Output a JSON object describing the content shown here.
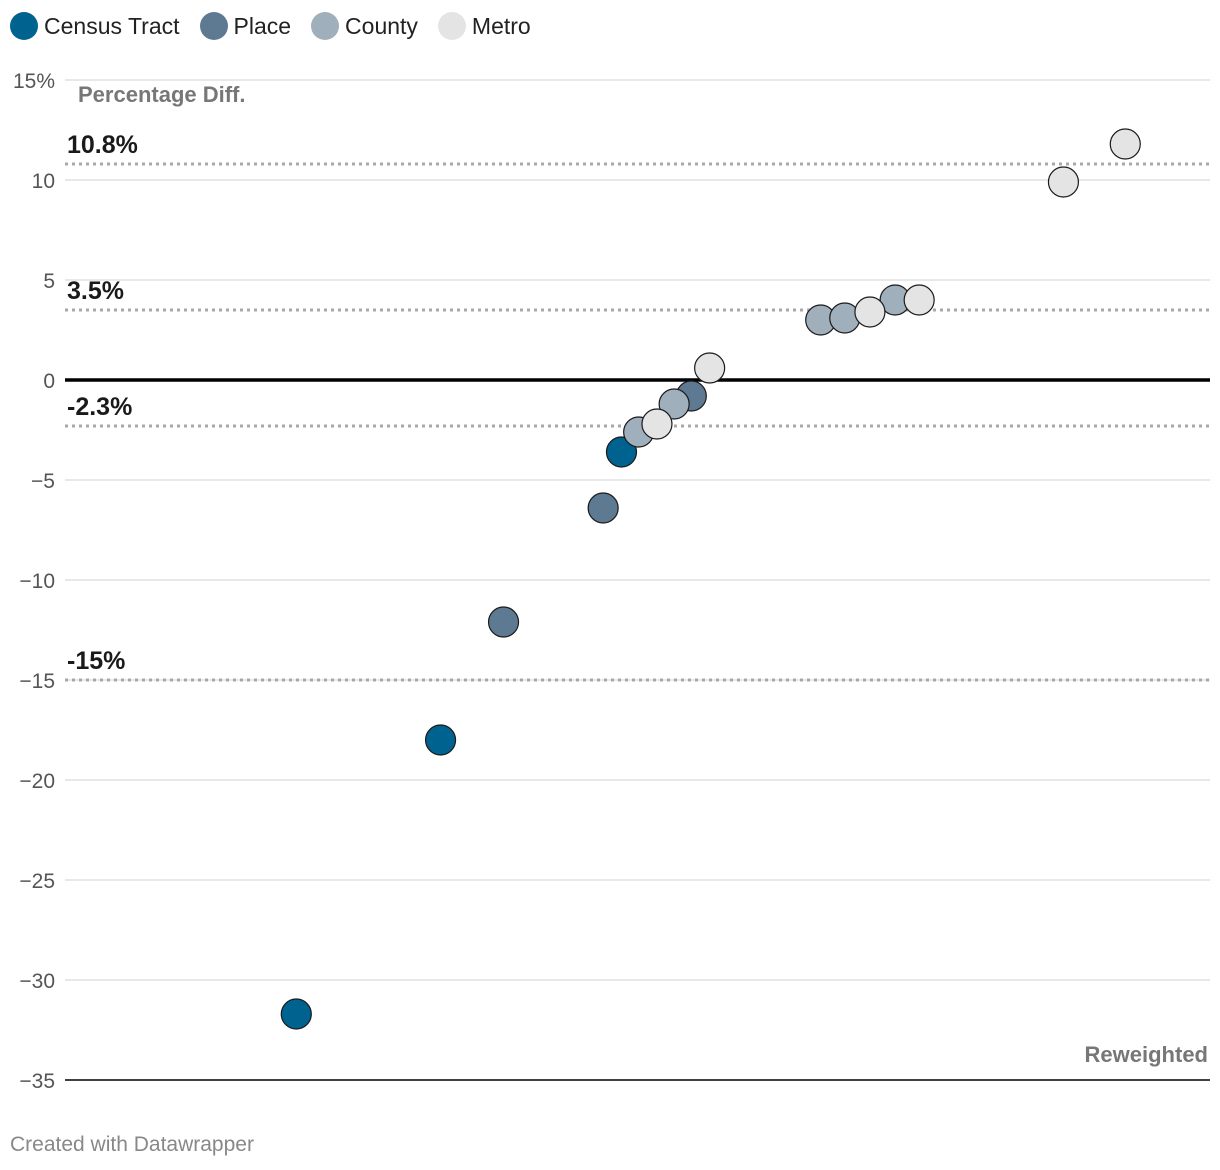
{
  "chart_data": {
    "type": "scatter",
    "title": "",
    "ylabel": "Percentage Diff.",
    "xlabel": "Reweighted",
    "ylim": [
      -35,
      15
    ],
    "xlim": [
      0,
      100
    ],
    "y_ticks": [
      {
        "value": 15,
        "label": "15%"
      },
      {
        "value": 10,
        "label": "10"
      },
      {
        "value": 5,
        "label": "5"
      },
      {
        "value": 0,
        "label": "0"
      },
      {
        "value": -5,
        "label": "-5"
      },
      {
        "value": -10,
        "label": "-10"
      },
      {
        "value": -15,
        "label": "-15"
      },
      {
        "value": -20,
        "label": "-20"
      },
      {
        "value": -25,
        "label": "-25"
      },
      {
        "value": -30,
        "label": "-30"
      },
      {
        "value": -35,
        "label": "-35"
      }
    ],
    "legend": [
      {
        "name": "Census Tract",
        "color": "#00628f"
      },
      {
        "name": "Place",
        "color": "#5e7a92"
      },
      {
        "name": "County",
        "color": "#a0afbc"
      },
      {
        "name": "Metro",
        "color": "#e4e4e4"
      }
    ],
    "reference_lines": [
      {
        "value": 10.8,
        "label": "10.8%"
      },
      {
        "value": 3.5,
        "label": "3.5%"
      },
      {
        "value": -2.3,
        "label": "-2.3%"
      },
      {
        "value": -15,
        "label": "-15%"
      }
    ],
    "series": [
      {
        "name": "Census Tract",
        "color": "#00628f",
        "points": [
          {
            "x": 20.2,
            "y": -31.7
          },
          {
            "x": 32.8,
            "y": -18.0
          },
          {
            "x": 48.6,
            "y": -3.6
          }
        ]
      },
      {
        "name": "Place",
        "color": "#5e7a92",
        "points": [
          {
            "x": 38.3,
            "y": -12.1
          },
          {
            "x": 47.0,
            "y": -6.4
          },
          {
            "x": 54.7,
            "y": -0.8
          }
        ]
      },
      {
        "name": "County",
        "color": "#a0afbc",
        "points": [
          {
            "x": 50.1,
            "y": -2.6
          },
          {
            "x": 53.2,
            "y": -1.2
          },
          {
            "x": 66.0,
            "y": 3.0
          },
          {
            "x": 68.1,
            "y": 3.1
          },
          {
            "x": 72.5,
            "y": 4.0
          }
        ]
      },
      {
        "name": "Metro",
        "color": "#e4e4e4",
        "points": [
          {
            "x": 51.7,
            "y": -2.2
          },
          {
            "x": 56.3,
            "y": 0.6
          },
          {
            "x": 70.3,
            "y": 3.4
          },
          {
            "x": 74.6,
            "y": 4.0
          },
          {
            "x": 87.2,
            "y": 9.9
          },
          {
            "x": 92.6,
            "y": 11.8
          }
        ]
      }
    ]
  },
  "footer": {
    "credit": "Created with Datawrapper"
  }
}
